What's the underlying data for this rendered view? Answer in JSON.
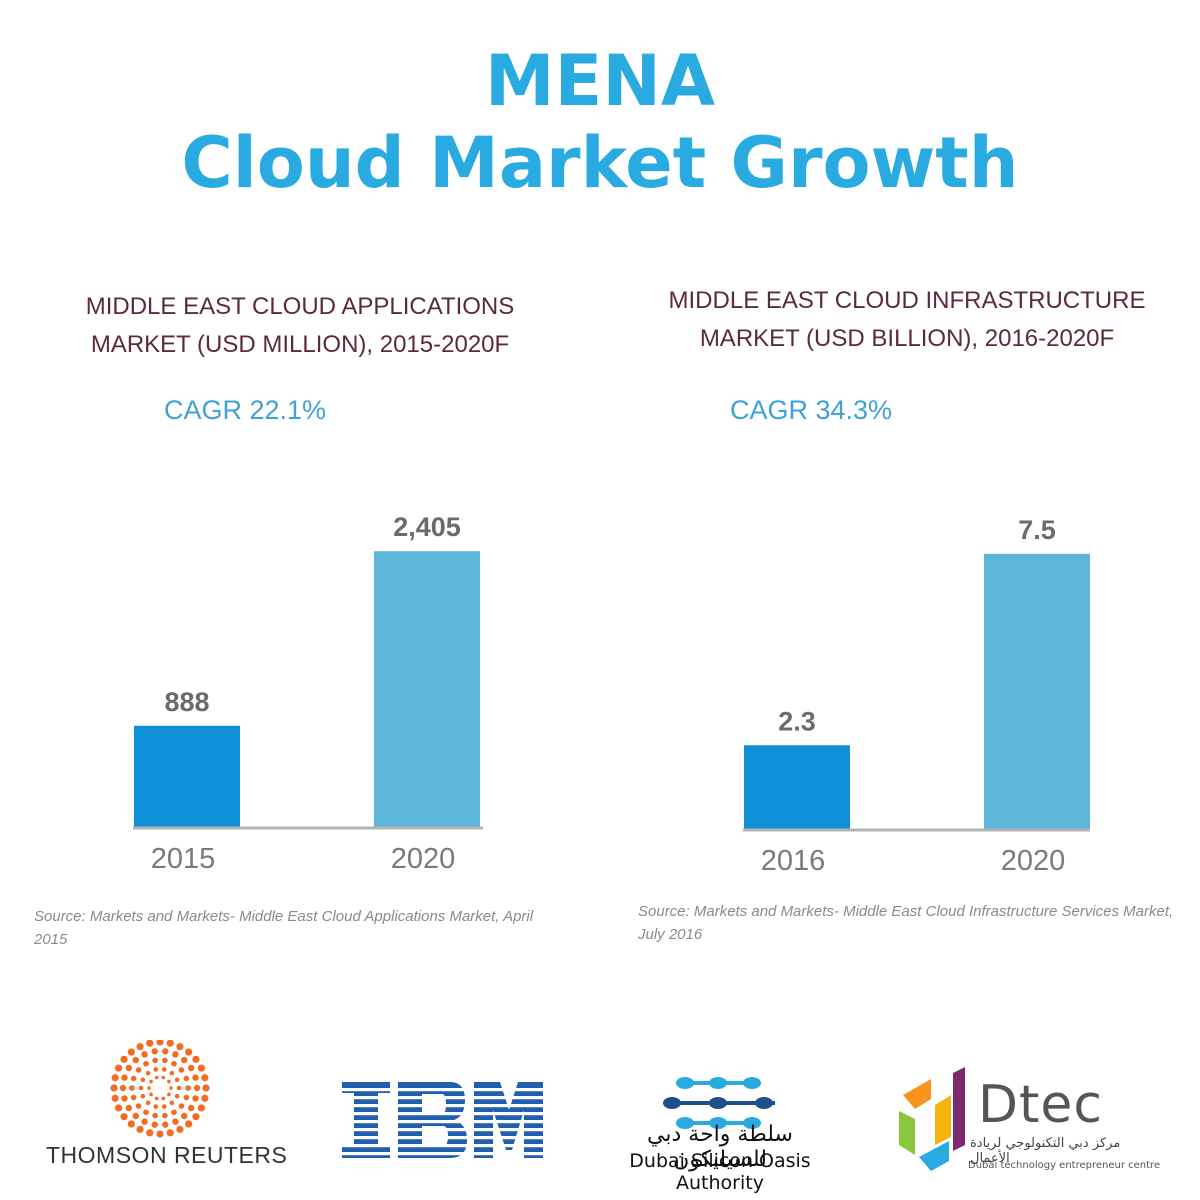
{
  "header": {
    "title_line1": "MENA",
    "title_line2": "Cloud Market Growth"
  },
  "chart_data": [
    {
      "type": "bar",
      "title_line1": "MIDDLE EAST CLOUD APPLICATIONS",
      "title_line2": "MARKET (USD MILLION), 2015-2020F",
      "cagr": "CAGR 22.1%",
      "categories": [
        "2015",
        "2020"
      ],
      "values": [
        888,
        2405
      ],
      "value_labels": [
        "888",
        "2,405"
      ],
      "colors": [
        "#0f8fd6",
        "#5cb7d8"
      ],
      "ylim": [
        0,
        2650
      ],
      "grid": false,
      "source": "Source: Markets and Markets- Middle East Cloud Applications Market, April 2015"
    },
    {
      "type": "bar",
      "title_line1": "MIDDLE EAST CLOUD INFRASTRUCTURE",
      "title_line2": "MARKET (USD BILLION), 2016-2020F",
      "cagr": "CAGR 34.3%",
      "categories": [
        "2016",
        "2020"
      ],
      "values": [
        2.3,
        7.5
      ],
      "value_labels": [
        "2.3",
        "7.5"
      ],
      "colors": [
        "#0f8fd6",
        "#5cb7d8"
      ],
      "ylim": [
        0,
        8.2
      ],
      "grid": false,
      "source": "Source: Markets and Markets- Middle East Cloud Infrastructure Services Market, July 2016"
    }
  ],
  "logos": {
    "thomson_reuters": "THOMSON REUTERS",
    "ibm": "IBM",
    "dsoa_arabic": "سلطة واحة دبي للسيليكون",
    "dsoa_english": "Dubai Silicon Oasis Authority",
    "dtec": "Dtec",
    "dtec_arabic": "مركز دبي التكنولوجي لريادة الأعمال",
    "dtec_english": "Dubai technology entrepreneur centre",
    "colors": {
      "thomson_reuters": "#f26b21",
      "ibm": "#1f5fad",
      "dsoa": "#1d4f8c",
      "dtec_green": "#8cc63f",
      "dtec_orange": "#f7941d",
      "dtec_blue": "#29abe2",
      "dtec_purple": "#7b2a6e"
    }
  }
}
